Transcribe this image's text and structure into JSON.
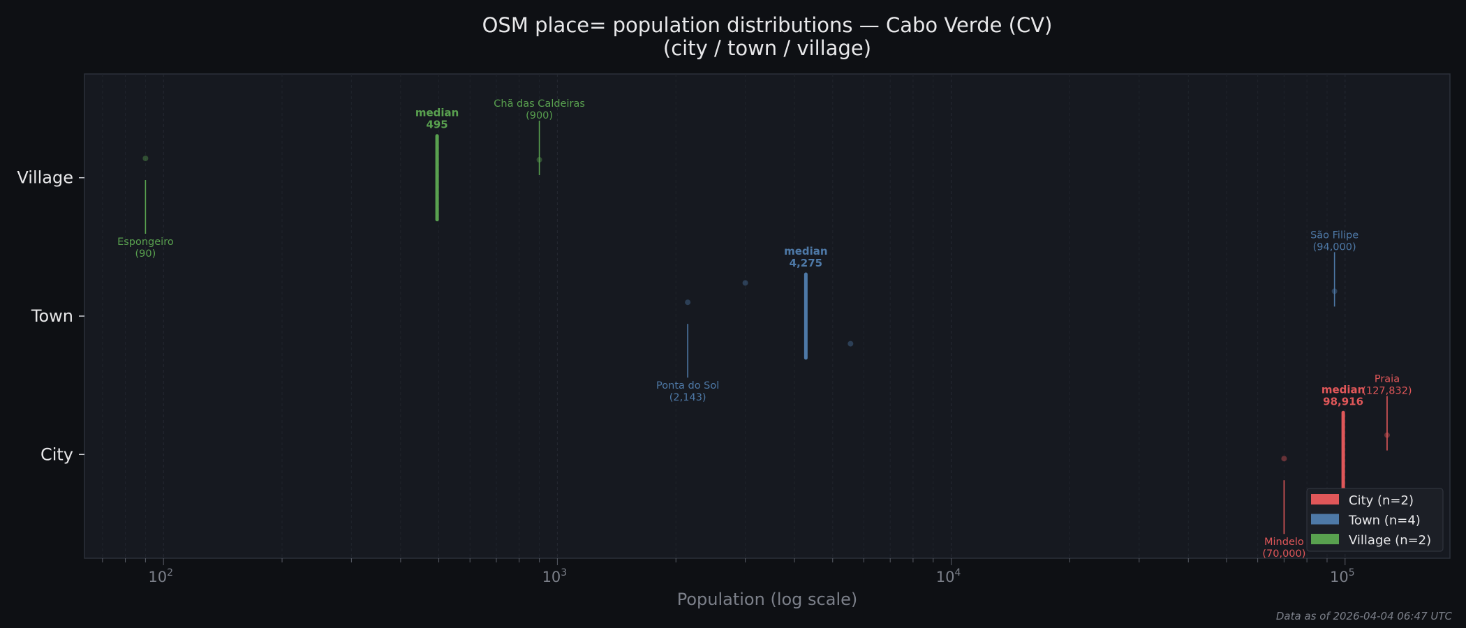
{
  "chart_data": {
    "type": "scatter",
    "title_line1": "OSM place= population distributions — Cabo Verde (CV)",
    "title_line2": "(city / town / village)",
    "xlabel": "Population (log scale)",
    "x_scale": "log",
    "xlim": [
      63,
      184600
    ],
    "x_ticks": [
      {
        "value": 100,
        "base": "10",
        "exp": "2"
      },
      {
        "value": 1000,
        "base": "10",
        "exp": "3"
      },
      {
        "value": 10000,
        "base": "10",
        "exp": "4"
      },
      {
        "value": 100000,
        "base": "10",
        "exp": "5"
      }
    ],
    "categories": [
      "City",
      "Town",
      "Village"
    ],
    "grid": true,
    "legend_position": "bottom-right",
    "series": [
      {
        "name": "City",
        "legend": "City  (n=2)",
        "color": "#e05759",
        "median": 98916,
        "median_label": "median",
        "median_value_label": "98,916",
        "points": [
          {
            "value": 70000,
            "jitter": -0.03,
            "label": "Mindelo",
            "value_label": "(70,000)",
            "label_pos": "below"
          },
          {
            "value": 127832,
            "jitter": 0.14,
            "label": "Praia",
            "value_label": "(127,832)",
            "label_pos": "above"
          }
        ]
      },
      {
        "name": "Town",
        "legend": "Town  (n=4)",
        "color": "#4e79a7",
        "median": 4275,
        "median_label": "median",
        "median_value_label": "4,275",
        "points": [
          {
            "value": 2143,
            "jitter": 0.1,
            "label": "Ponta do Sol",
            "value_label": "(2,143)",
            "label_pos": "below"
          },
          {
            "value": 3000,
            "jitter": 0.24
          },
          {
            "value": 5550,
            "jitter": -0.2
          },
          {
            "value": 94000,
            "jitter": 0.18,
            "label": "São Filipe",
            "value_label": "(94,000)",
            "label_pos": "above"
          }
        ]
      },
      {
        "name": "Village",
        "legend": "Village  (n=2)",
        "color": "#59a14f",
        "median": 495,
        "median_label": "median",
        "median_value_label": "495",
        "points": [
          {
            "value": 90,
            "jitter": 0.14,
            "label": "Espongeiro",
            "value_label": "(90)",
            "label_pos": "below"
          },
          {
            "value": 900,
            "jitter": 0.13,
            "label": "Chã das Caldeiras",
            "value_label": "(900)",
            "label_pos": "above"
          }
        ]
      }
    ],
    "footer": "Data as of 2026-04-04 06:47 UTC"
  }
}
